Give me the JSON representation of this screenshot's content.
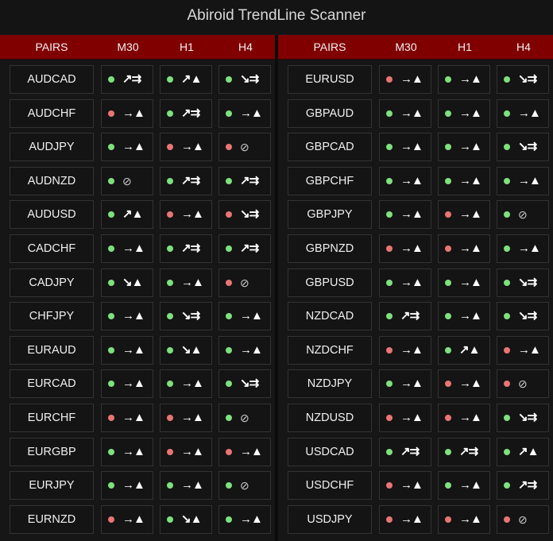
{
  "title": "Abiroid TrendLine Scanner",
  "colors": {
    "header_bg": "#800000",
    "green": "#7ee07e",
    "red": "#e87575",
    "background": "#161616"
  },
  "icon_legend": {
    "→▲": "arrow-right-triangle-up",
    "↗▲": "arrow-up-right-triangle-up",
    "↘▲": "arrow-down-right-triangle-up",
    "↗⇉": "arrow-up-right-double-arrow",
    "↘⇉": "arrow-down-right-double-arrow",
    "⊘": "no-entry"
  },
  "panels": [
    {
      "headers": [
        "PAIRS",
        "M30",
        "H1",
        "H4"
      ],
      "rows": [
        {
          "pair": "AUDCAD",
          "cells": [
            {
              "status": "green",
              "signal": "↗⇉"
            },
            {
              "status": "green",
              "signal": "↗▲"
            },
            {
              "status": "green",
              "signal": "↘⇉"
            }
          ]
        },
        {
          "pair": "AUDCHF",
          "cells": [
            {
              "status": "red",
              "signal": "→▲"
            },
            {
              "status": "green",
              "signal": "↗⇉"
            },
            {
              "status": "green",
              "signal": "→▲"
            }
          ]
        },
        {
          "pair": "AUDJPY",
          "cells": [
            {
              "status": "green",
              "signal": "→▲"
            },
            {
              "status": "red",
              "signal": "→▲"
            },
            {
              "status": "red",
              "signal": "⊘"
            }
          ]
        },
        {
          "pair": "AUDNZD",
          "cells": [
            {
              "status": "green",
              "signal": "⊘"
            },
            {
              "status": "green",
              "signal": "↗⇉"
            },
            {
              "status": "green",
              "signal": "↗⇉"
            }
          ]
        },
        {
          "pair": "AUDUSD",
          "cells": [
            {
              "status": "green",
              "signal": "↗▲"
            },
            {
              "status": "red",
              "signal": "→▲"
            },
            {
              "status": "red",
              "signal": "↘⇉"
            }
          ]
        },
        {
          "pair": "CADCHF",
          "cells": [
            {
              "status": "green",
              "signal": "→▲"
            },
            {
              "status": "green",
              "signal": "↗⇉"
            },
            {
              "status": "green",
              "signal": "↗⇉"
            }
          ]
        },
        {
          "pair": "CADJPY",
          "cells": [
            {
              "status": "green",
              "signal": "↘▲"
            },
            {
              "status": "green",
              "signal": "→▲"
            },
            {
              "status": "red",
              "signal": "⊘"
            }
          ]
        },
        {
          "pair": "CHFJPY",
          "cells": [
            {
              "status": "green",
              "signal": "→▲"
            },
            {
              "status": "green",
              "signal": "↘⇉"
            },
            {
              "status": "green",
              "signal": "→▲"
            }
          ]
        },
        {
          "pair": "EURAUD",
          "cells": [
            {
              "status": "green",
              "signal": "→▲"
            },
            {
              "status": "green",
              "signal": "↘▲"
            },
            {
              "status": "green",
              "signal": "→▲"
            }
          ]
        },
        {
          "pair": "EURCAD",
          "cells": [
            {
              "status": "green",
              "signal": "→▲"
            },
            {
              "status": "green",
              "signal": "→▲"
            },
            {
              "status": "green",
              "signal": "↘⇉"
            }
          ]
        },
        {
          "pair": "EURCHF",
          "cells": [
            {
              "status": "red",
              "signal": "→▲"
            },
            {
              "status": "red",
              "signal": "→▲"
            },
            {
              "status": "green",
              "signal": "⊘"
            }
          ]
        },
        {
          "pair": "EURGBP",
          "cells": [
            {
              "status": "green",
              "signal": "→▲"
            },
            {
              "status": "red",
              "signal": "→▲"
            },
            {
              "status": "red",
              "signal": "→▲"
            }
          ]
        },
        {
          "pair": "EURJPY",
          "cells": [
            {
              "status": "green",
              "signal": "→▲"
            },
            {
              "status": "green",
              "signal": "→▲"
            },
            {
              "status": "green",
              "signal": "⊘"
            }
          ]
        },
        {
          "pair": "EURNZD",
          "cells": [
            {
              "status": "red",
              "signal": "→▲"
            },
            {
              "status": "green",
              "signal": "↘▲"
            },
            {
              "status": "green",
              "signal": "→▲"
            }
          ]
        }
      ]
    },
    {
      "headers": [
        "PAIRS",
        "M30",
        "H1",
        "H4"
      ],
      "rows": [
        {
          "pair": "EURUSD",
          "cells": [
            {
              "status": "red",
              "signal": "→▲"
            },
            {
              "status": "green",
              "signal": "→▲"
            },
            {
              "status": "green",
              "signal": "↘⇉"
            }
          ]
        },
        {
          "pair": "GBPAUD",
          "cells": [
            {
              "status": "green",
              "signal": "→▲"
            },
            {
              "status": "green",
              "signal": "→▲"
            },
            {
              "status": "green",
              "signal": "→▲"
            }
          ]
        },
        {
          "pair": "GBPCAD",
          "cells": [
            {
              "status": "green",
              "signal": "→▲"
            },
            {
              "status": "green",
              "signal": "→▲"
            },
            {
              "status": "green",
              "signal": "↘⇉"
            }
          ]
        },
        {
          "pair": "GBPCHF",
          "cells": [
            {
              "status": "green",
              "signal": "→▲"
            },
            {
              "status": "green",
              "signal": "→▲"
            },
            {
              "status": "green",
              "signal": "→▲"
            }
          ]
        },
        {
          "pair": "GBPJPY",
          "cells": [
            {
              "status": "green",
              "signal": "→▲"
            },
            {
              "status": "red",
              "signal": "→▲"
            },
            {
              "status": "green",
              "signal": "⊘"
            }
          ]
        },
        {
          "pair": "GBPNZD",
          "cells": [
            {
              "status": "red",
              "signal": "→▲"
            },
            {
              "status": "red",
              "signal": "→▲"
            },
            {
              "status": "green",
              "signal": "→▲"
            }
          ]
        },
        {
          "pair": "GBPUSD",
          "cells": [
            {
              "status": "green",
              "signal": "→▲"
            },
            {
              "status": "green",
              "signal": "→▲"
            },
            {
              "status": "green",
              "signal": "↘⇉"
            }
          ]
        },
        {
          "pair": "NZDCAD",
          "cells": [
            {
              "status": "green",
              "signal": "↗⇉"
            },
            {
              "status": "green",
              "signal": "→▲"
            },
            {
              "status": "green",
              "signal": "↘⇉"
            }
          ]
        },
        {
          "pair": "NZDCHF",
          "cells": [
            {
              "status": "red",
              "signal": "→▲"
            },
            {
              "status": "green",
              "signal": "↗▲"
            },
            {
              "status": "red",
              "signal": "→▲"
            }
          ]
        },
        {
          "pair": "NZDJPY",
          "cells": [
            {
              "status": "green",
              "signal": "→▲"
            },
            {
              "status": "red",
              "signal": "→▲"
            },
            {
              "status": "red",
              "signal": "⊘"
            }
          ]
        },
        {
          "pair": "NZDUSD",
          "cells": [
            {
              "status": "red",
              "signal": "→▲"
            },
            {
              "status": "red",
              "signal": "→▲"
            },
            {
              "status": "green",
              "signal": "↘⇉"
            }
          ]
        },
        {
          "pair": "USDCAD",
          "cells": [
            {
              "status": "green",
              "signal": "↗⇉"
            },
            {
              "status": "green",
              "signal": "↗⇉"
            },
            {
              "status": "green",
              "signal": "↗▲"
            }
          ]
        },
        {
          "pair": "USDCHF",
          "cells": [
            {
              "status": "red",
              "signal": "→▲"
            },
            {
              "status": "green",
              "signal": "→▲"
            },
            {
              "status": "green",
              "signal": "↗⇉"
            }
          ]
        },
        {
          "pair": "USDJPY",
          "cells": [
            {
              "status": "red",
              "signal": "→▲"
            },
            {
              "status": "red",
              "signal": "→▲"
            },
            {
              "status": "red",
              "signal": "⊘"
            }
          ]
        }
      ]
    }
  ]
}
